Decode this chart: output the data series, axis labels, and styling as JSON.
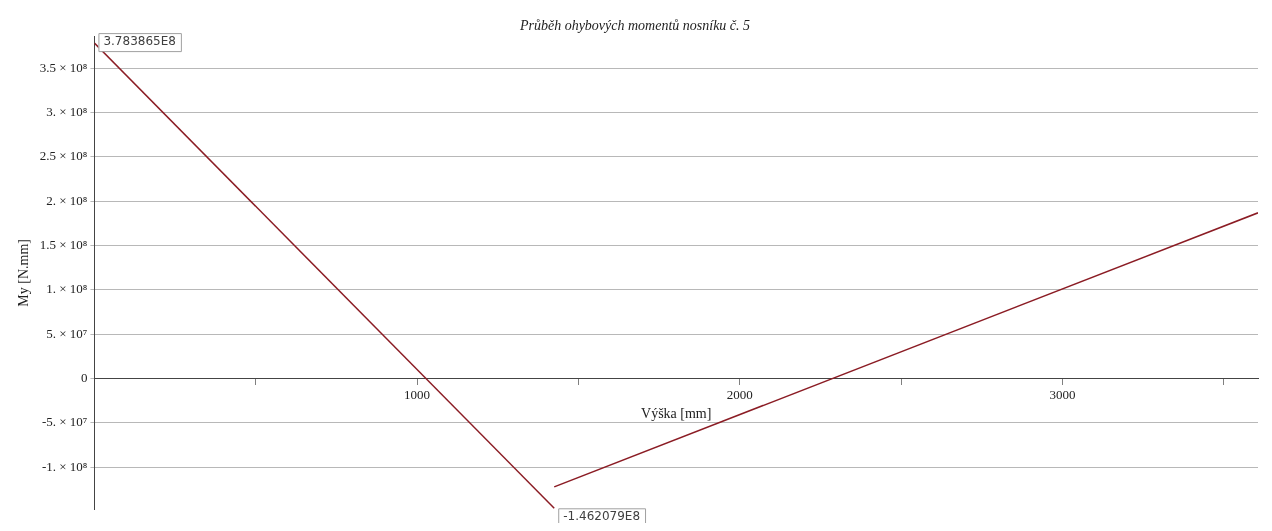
{
  "chart_data": {
    "type": "line",
    "title": "Průběh ohybových momentů nosníku č. 5",
    "xlabel": "Výška [mm]",
    "ylabel": "My [N.mm]",
    "series": [
      {
        "color": "#8b1c24",
        "x": [
          0,
          1425
        ],
        "values": [
          378386500,
          -146207900
        ]
      },
      {
        "color": "#8b1c24",
        "x": [
          1425,
          3606
        ],
        "values": [
          -122000000,
          187000000
        ]
      }
    ],
    "xlim": [
      0,
      3606
    ],
    "xticks": [
      {
        "value": 500,
        "label": null
      },
      1000,
      {
        "value": 1500,
        "label": null
      },
      2000,
      {
        "value": 2500,
        "label": null
      },
      3000,
      {
        "value": 3500,
        "label": null
      }
    ],
    "ylim": [
      -147000000,
      385500000
    ],
    "yticks": [
      {
        "value": -100000000,
        "label": "-1. × 10⁸"
      },
      {
        "value": -50000000,
        "label": "-5. × 10⁷"
      },
      0,
      {
        "value": 50000000,
        "label": "5. × 10⁷"
      },
      {
        "value": 100000000,
        "label": "1. × 10⁸"
      },
      {
        "value": 150000000,
        "label": "1.5 × 10⁸"
      },
      {
        "value": 200000000,
        "label": "2. × 10⁸"
      },
      {
        "value": 250000000,
        "label": "2.5 × 10⁸"
      },
      {
        "value": 300000000,
        "label": "3. × 10⁸"
      },
      {
        "value": 350000000,
        "label": "3.5 × 10⁸"
      }
    ],
    "grid": "y",
    "marker": "none",
    "line_style": "solid",
    "annotations": [
      {
        "text": "3.783865E8",
        "x": 0,
        "y": 378386500
      },
      {
        "text": "-1.462079E8",
        "x": 1425,
        "y": -146207900
      }
    ]
  }
}
